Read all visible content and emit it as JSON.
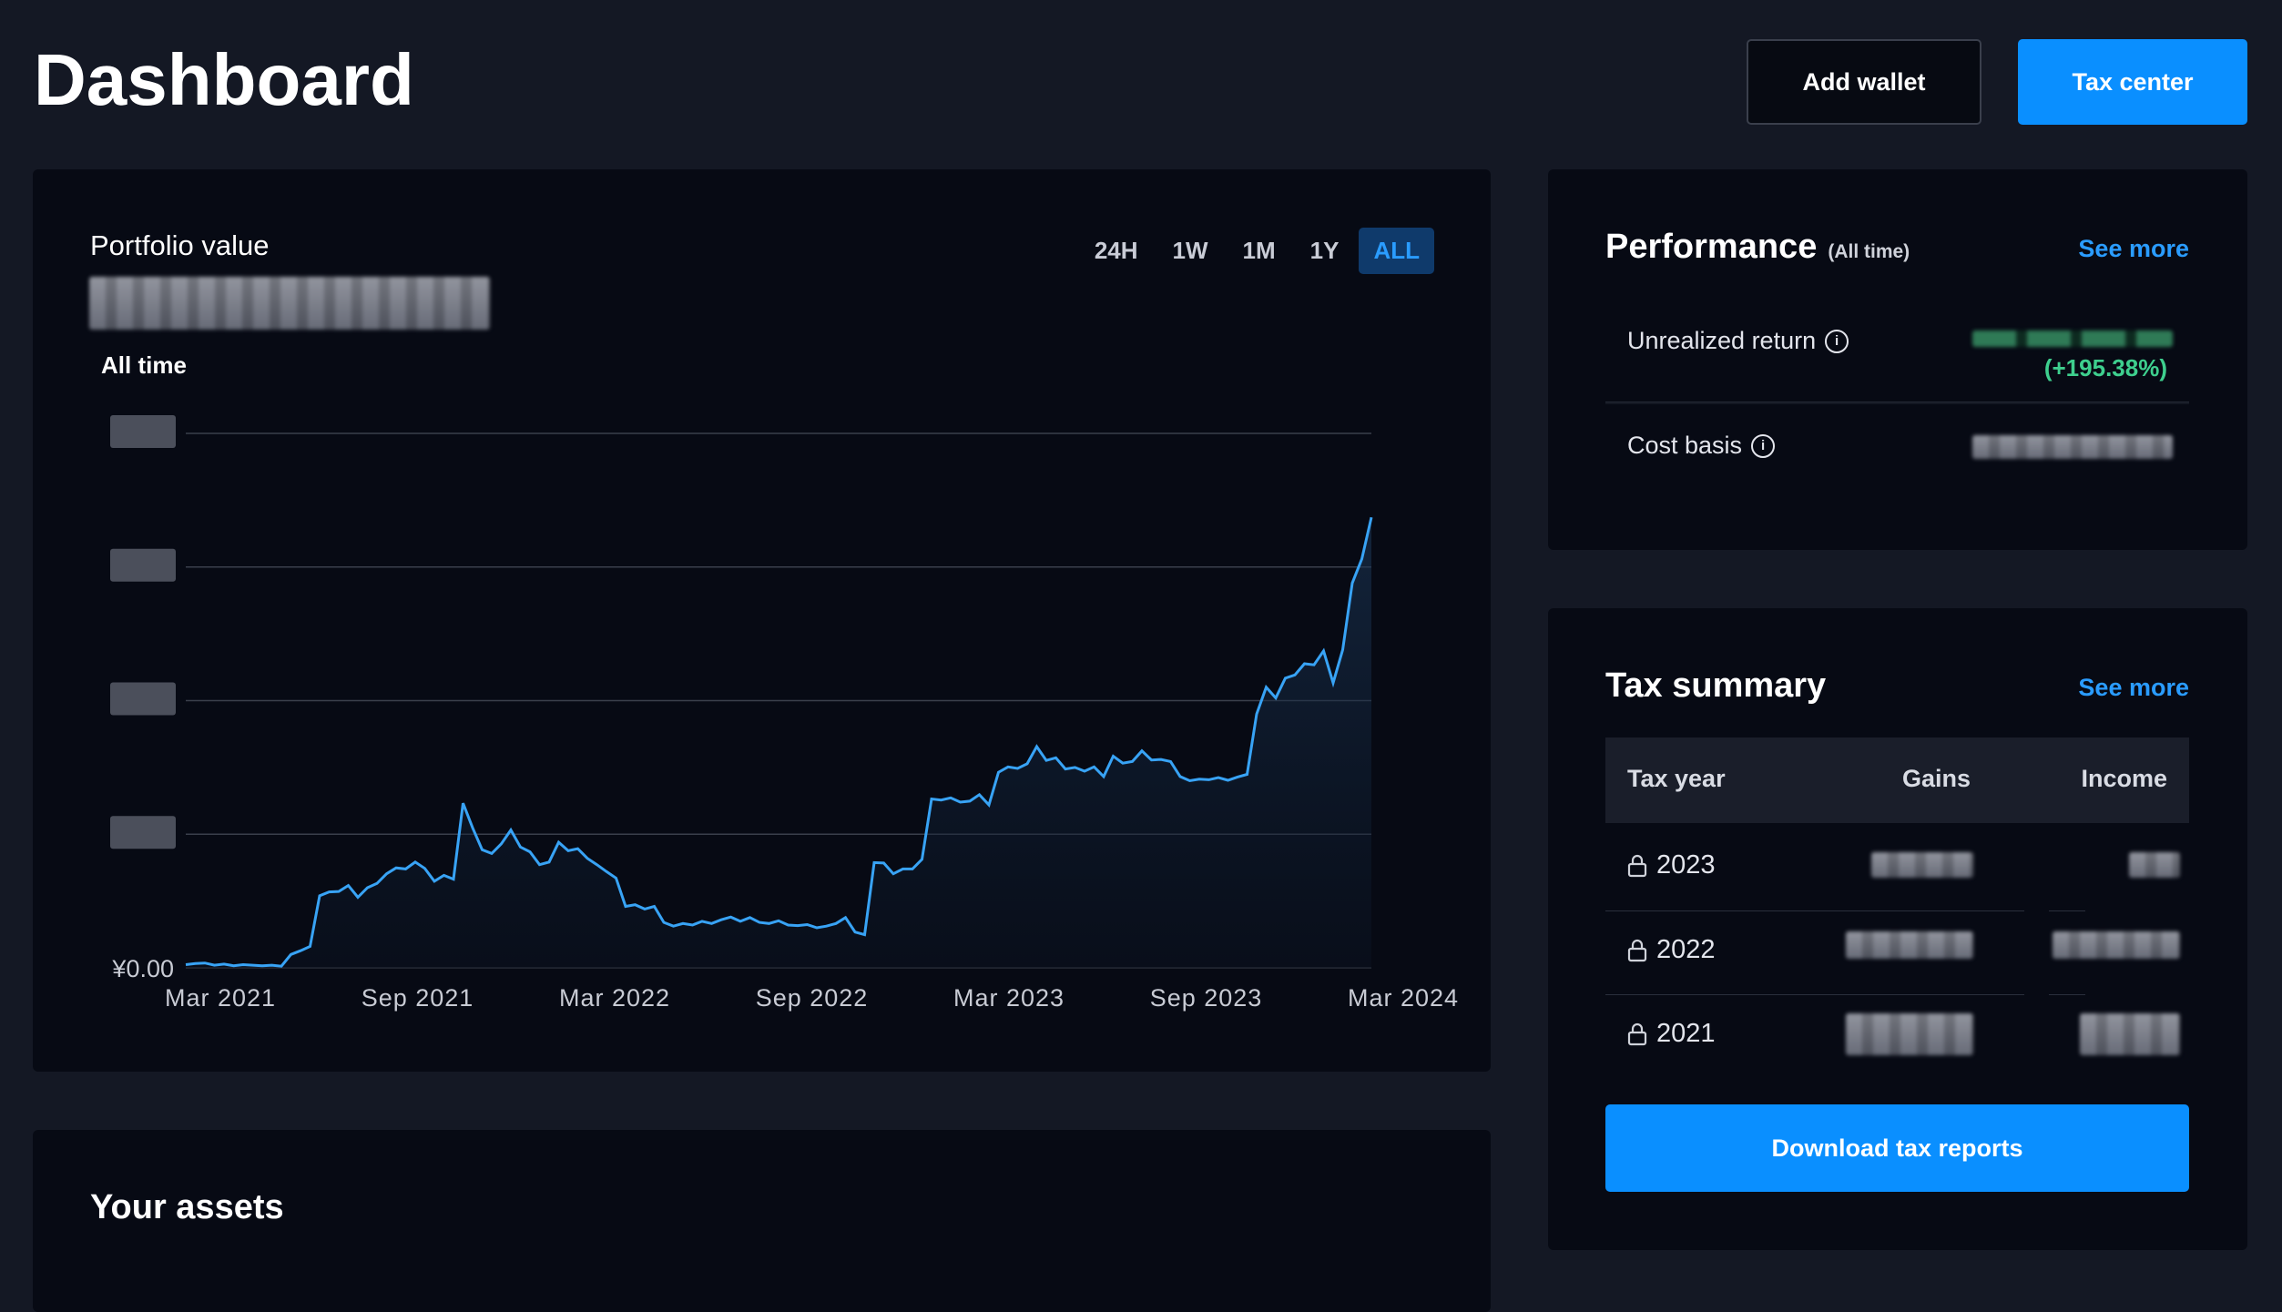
{
  "header": {
    "title": "Dashboard",
    "add_wallet_label": "Add wallet",
    "tax_center_label": "Tax center"
  },
  "portfolio": {
    "label": "Portfolio value",
    "period_label": "All time",
    "ranges": [
      "24H",
      "1W",
      "1M",
      "1Y",
      "ALL"
    ],
    "active_range": "ALL"
  },
  "chart_data": {
    "type": "area",
    "title": "",
    "xlabel": "",
    "ylabel": "",
    "x_tick_labels": [
      "Mar 2021",
      "Sep 2021",
      "Mar 2022",
      "Sep 2022",
      "Mar 2023",
      "Sep 2023",
      "Mar 2024"
    ],
    "y_tick_labels": [
      "¥0.00"
    ],
    "grid": true,
    "line_color": "#38a3f5",
    "series": [
      {
        "values": [
          0.6,
          0.8,
          0.9,
          0.5,
          0.7,
          0.4,
          0.6,
          0.5,
          0.4,
          0.5,
          0.3,
          2.5,
          3.2,
          4.0,
          13.5,
          14.2,
          14.3,
          15.4,
          13.2,
          15.0,
          15.8,
          17.6,
          18.7,
          18.5,
          19.8,
          18.6,
          16.2,
          17.3,
          16.6,
          30.8,
          26.2,
          22.1,
          21.4,
          23.2,
          25.8,
          22.6,
          21.7,
          19.3,
          19.8,
          23.5,
          21.9,
          22.3,
          20.5,
          19.3,
          18.0,
          16.8,
          11.5,
          11.8,
          11.0,
          11.5,
          8.5,
          7.8,
          8.3,
          8.0,
          8.7,
          8.3,
          9.0,
          9.5,
          8.7,
          9.4,
          8.5,
          8.3,
          8.8,
          8.0,
          7.9,
          8.1,
          7.5,
          7.8,
          8.3,
          9.4,
          6.7,
          6.2,
          19.7,
          19.6,
          17.6,
          18.5,
          18.5,
          20.3,
          31.6,
          31.4,
          31.8,
          31.0,
          31.2,
          32.4,
          30.5,
          36.6,
          37.6,
          37.3,
          38.2,
          41.4,
          38.8,
          39.3,
          37.2,
          37.5,
          36.8,
          37.6,
          35.8,
          39.6,
          38.3,
          38.6,
          40.6,
          38.9,
          39.0,
          38.6,
          35.8,
          35.0,
          35.3,
          35.2,
          35.6,
          35.1,
          35.7,
          36.2,
          47.5,
          52.5,
          50.5,
          54.2,
          54.8,
          56.9,
          56.7,
          59.3,
          53.3,
          59.5,
          72.0,
          76.5,
          84.3
        ]
      }
    ]
  },
  "performance": {
    "title": "Performance",
    "subtitle": "(All time)",
    "see_more": "See more",
    "unrealized_label": "Unrealized return",
    "unrealized_pct": "(+195.38%)",
    "cost_basis_label": "Cost basis",
    "colors": {
      "positive": "#3ecf8e"
    }
  },
  "tax_summary": {
    "title": "Tax summary",
    "see_more": "See more",
    "columns": [
      "Tax year",
      "Gains",
      "Income"
    ],
    "rows": [
      {
        "year": "2023"
      },
      {
        "year": "2022"
      },
      {
        "year": "2021"
      }
    ],
    "download_label": "Download tax reports"
  },
  "assets": {
    "title": "Your assets"
  },
  "colors": {
    "accent": "#0a8fff",
    "background": "#141824",
    "card": "#070a14"
  }
}
